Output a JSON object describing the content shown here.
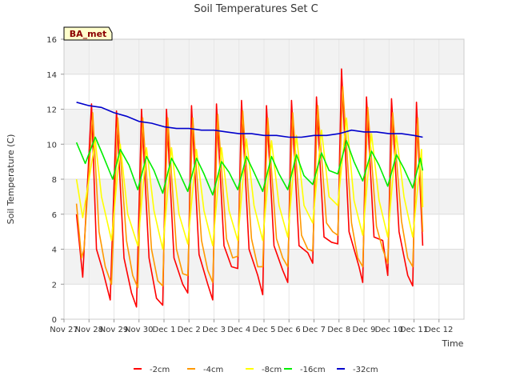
{
  "chart_data": {
    "type": "line",
    "title": "Soil Temperatures Set C",
    "xlabel": "Time",
    "ylabel": "Soil Temperature (C)",
    "badge": "BA_met",
    "xlim": [
      0,
      16
    ],
    "ylim": [
      0,
      16
    ],
    "x_tick_labels": [
      "Nov 27",
      "Nov 28",
      "Nov 29",
      "Nov 30",
      "Dec 1",
      "Dec 2",
      "Dec 3",
      "Dec 4",
      "Dec 5",
      "Dec 6",
      "Dec 7",
      "Dec 8",
      "Dec 9",
      "Dec 10",
      "Dec 11",
      "Dec 12"
    ],
    "y_ticks": [
      0,
      2,
      4,
      6,
      8,
      10,
      12,
      14,
      16
    ],
    "grid": true,
    "legend_position": "bottom",
    "series": [
      {
        "name": "-2cm",
        "color": "#ff0000",
        "x": [
          0.5,
          0.75,
          1.1,
          1.3,
          1.55,
          1.85,
          2.1,
          2.4,
          2.7,
          2.9,
          3.1,
          3.4,
          3.7,
          3.95,
          4.1,
          4.4,
          4.75,
          4.95,
          5.1,
          5.4,
          5.75,
          5.95,
          6.1,
          6.4,
          6.7,
          6.95,
          7.1,
          7.4,
          7.75,
          7.95,
          8.1,
          8.4,
          8.75,
          8.95,
          9.1,
          9.4,
          9.75,
          9.95,
          10.1,
          10.4,
          10.7,
          10.95,
          11.1,
          11.4,
          11.8,
          11.95,
          12.1,
          12.4,
          12.75,
          12.95,
          13.1,
          13.4,
          13.75,
          13.95,
          14.1,
          14.35
        ],
        "y": [
          6.0,
          2.4,
          12.3,
          4.0,
          2.8,
          1.1,
          11.9,
          3.5,
          1.5,
          0.7,
          12.0,
          3.5,
          1.2,
          0.8,
          12.0,
          3.5,
          2.0,
          1.5,
          12.2,
          3.7,
          2.0,
          1.1,
          12.3,
          4.2,
          3.0,
          2.9,
          12.5,
          4.0,
          2.5,
          1.4,
          12.2,
          4.2,
          2.8,
          2.1,
          12.5,
          4.2,
          3.8,
          3.2,
          12.7,
          4.7,
          4.4,
          4.3,
          14.3,
          5.0,
          3.0,
          2.1,
          12.7,
          4.7,
          4.5,
          2.5,
          12.6,
          5.0,
          2.5,
          1.9,
          12.4,
          4.2
        ]
      },
      {
        "name": "-4cm",
        "color": "#ff9900",
        "x": [
          0.5,
          0.7,
          0.8,
          1.15,
          1.4,
          1.65,
          1.9,
          2.15,
          2.5,
          2.75,
          2.95,
          3.15,
          3.5,
          3.75,
          3.95,
          4.15,
          4.5,
          4.75,
          4.95,
          5.15,
          5.5,
          5.75,
          5.95,
          6.15,
          6.5,
          6.75,
          6.95,
          7.15,
          7.5,
          7.75,
          7.95,
          8.15,
          8.5,
          8.75,
          8.95,
          9.15,
          9.5,
          9.75,
          9.95,
          10.15,
          10.5,
          10.75,
          10.95,
          11.15,
          11.5,
          11.75,
          11.95,
          12.15,
          12.5,
          12.75,
          12.95,
          13.15,
          13.5,
          13.75,
          13.95,
          14.15,
          14.35
        ],
        "y": [
          6.6,
          3.5,
          4.0,
          11.8,
          5.0,
          3.0,
          2.0,
          11.5,
          4.5,
          2.5,
          1.8,
          11.5,
          4.0,
          2.2,
          1.9,
          11.5,
          4.0,
          2.6,
          2.5,
          11.5,
          4.5,
          2.8,
          2.1,
          11.7,
          4.6,
          3.5,
          3.6,
          11.9,
          4.6,
          3.0,
          3.0,
          11.5,
          4.6,
          3.5,
          3.0,
          11.8,
          4.8,
          4.0,
          3.9,
          12.2,
          5.5,
          5.0,
          4.8,
          13.3,
          5.5,
          3.5,
          3.0,
          12.1,
          5.3,
          4.0,
          3.2,
          11.8,
          5.6,
          3.5,
          3.0,
          11.5,
          5.0
        ]
      },
      {
        "name": "-8cm",
        "color": "#ffff00",
        "x": [
          0.5,
          0.75,
          1.25,
          1.5,
          1.9,
          2.25,
          2.55,
          2.95,
          3.3,
          3.6,
          3.95,
          4.3,
          4.6,
          4.95,
          5.3,
          5.6,
          5.95,
          6.3,
          6.6,
          6.95,
          7.3,
          7.6,
          7.95,
          8.3,
          8.6,
          8.95,
          9.3,
          9.6,
          9.95,
          10.3,
          10.6,
          10.95,
          11.3,
          11.6,
          11.95,
          12.3,
          12.6,
          12.95,
          13.3,
          13.6,
          13.95,
          14.3,
          14.35
        ],
        "y": [
          8.0,
          5.8,
          10.2,
          7.0,
          4.5,
          10.0,
          6.0,
          4.2,
          9.8,
          6.2,
          4.0,
          9.8,
          6.0,
          4.3,
          9.7,
          6.2,
          4.2,
          9.8,
          6.2,
          4.5,
          10.3,
          6.5,
          4.5,
          10.2,
          6.5,
          4.7,
          10.5,
          6.5,
          5.5,
          10.8,
          7.0,
          6.5,
          11.5,
          6.8,
          4.8,
          10.6,
          6.8,
          4.7,
          10.5,
          7.0,
          4.7,
          9.7,
          6.4
        ]
      },
      {
        "name": "-16cm",
        "color": "#00ee00",
        "x": [
          0.5,
          0.85,
          1.25,
          1.55,
          1.95,
          2.25,
          2.6,
          2.95,
          3.3,
          3.6,
          3.95,
          4.3,
          4.6,
          4.95,
          5.3,
          5.6,
          5.95,
          6.3,
          6.6,
          6.95,
          7.3,
          7.6,
          7.95,
          8.3,
          8.6,
          8.95,
          9.3,
          9.6,
          9.95,
          10.3,
          10.6,
          10.95,
          11.3,
          11.6,
          11.95,
          12.3,
          12.6,
          12.95,
          13.3,
          13.6,
          13.95,
          14.25,
          14.35
        ],
        "y": [
          10.1,
          8.9,
          10.4,
          9.4,
          8.0,
          9.7,
          8.8,
          7.4,
          9.3,
          8.5,
          7.2,
          9.2,
          8.4,
          7.3,
          9.2,
          8.3,
          7.1,
          9.0,
          8.4,
          7.4,
          9.3,
          8.4,
          7.3,
          9.3,
          8.3,
          7.4,
          9.4,
          8.2,
          7.7,
          9.5,
          8.5,
          8.3,
          10.2,
          9.0,
          7.9,
          9.6,
          8.8,
          7.6,
          9.4,
          8.6,
          7.5,
          9.2,
          8.5
        ]
      },
      {
        "name": "-32cm",
        "color": "#0000cc",
        "x": [
          0.5,
          1.0,
          1.5,
          2.0,
          2.5,
          3.0,
          3.5,
          4.0,
          4.5,
          5.0,
          5.5,
          6.0,
          6.5,
          7.0,
          7.5,
          8.0,
          8.5,
          9.0,
          9.5,
          10.0,
          10.5,
          11.0,
          11.5,
          12.0,
          12.5,
          13.0,
          13.5,
          14.0,
          14.35
        ],
        "y": [
          12.4,
          12.2,
          12.1,
          11.8,
          11.6,
          11.3,
          11.2,
          11.0,
          10.9,
          10.9,
          10.8,
          10.8,
          10.7,
          10.6,
          10.6,
          10.5,
          10.5,
          10.4,
          10.4,
          10.5,
          10.5,
          10.6,
          10.8,
          10.7,
          10.7,
          10.6,
          10.6,
          10.5,
          10.4
        ]
      }
    ]
  }
}
